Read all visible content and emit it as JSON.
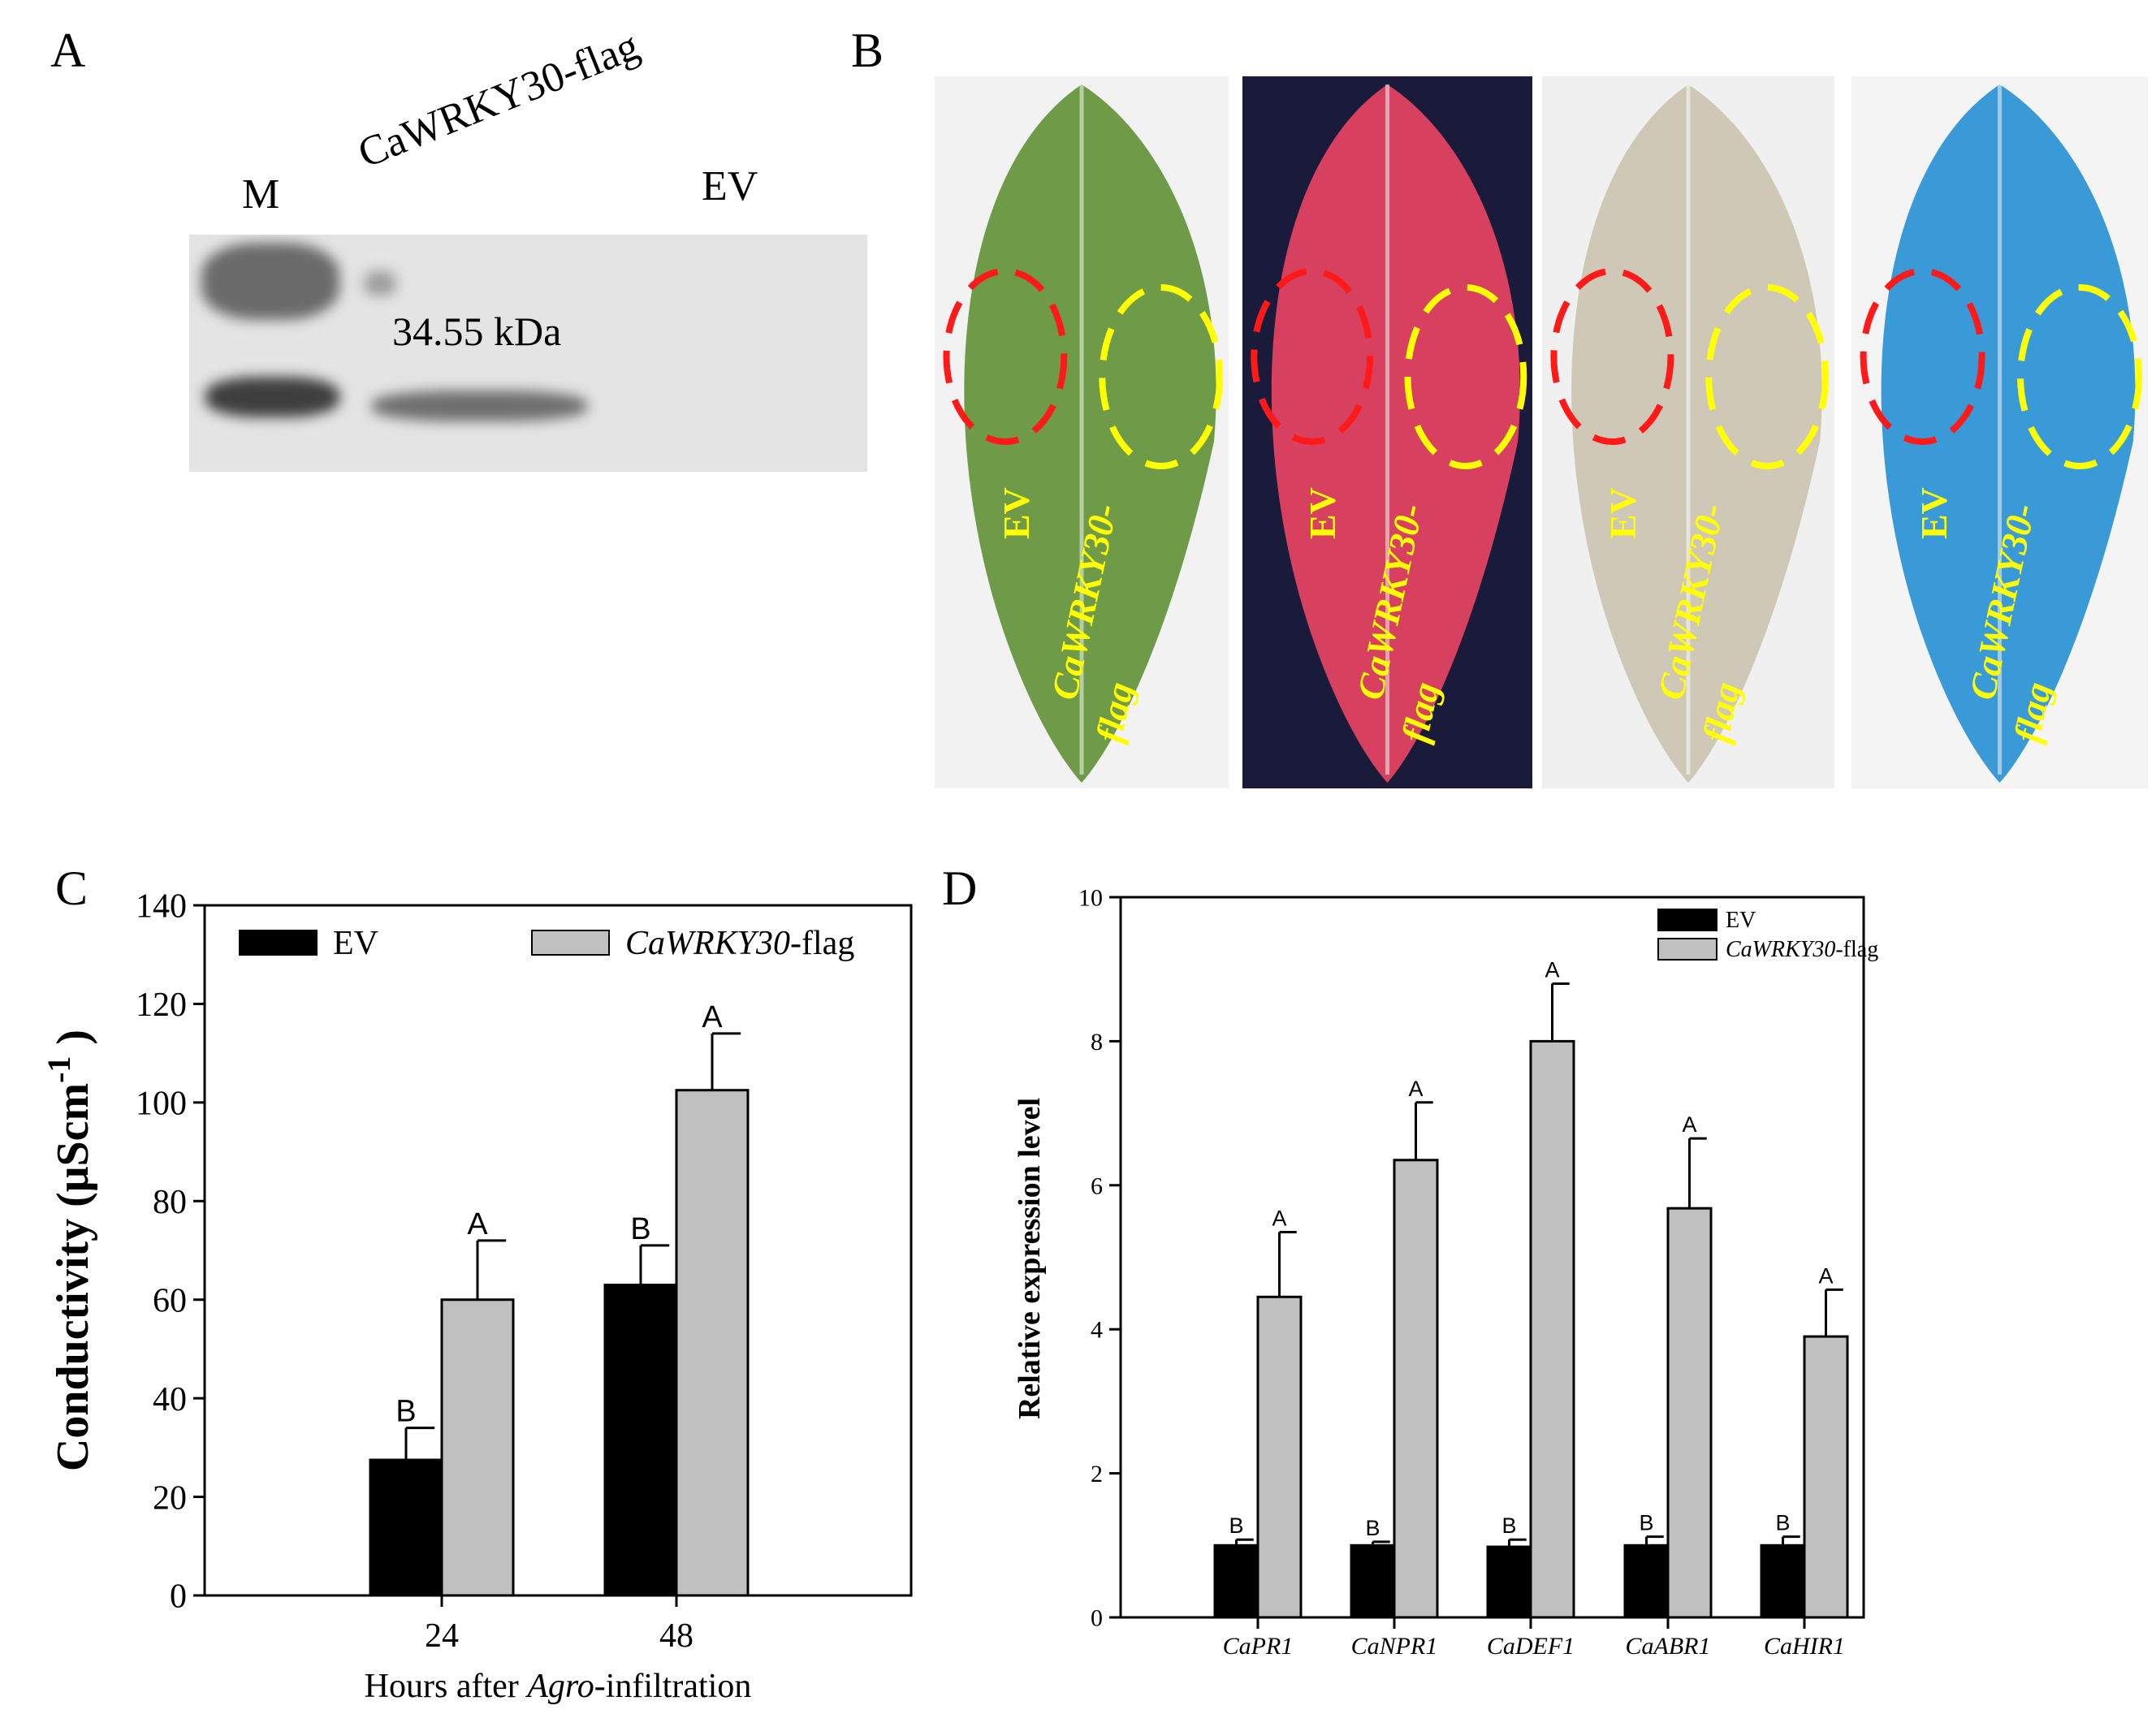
{
  "panel_a": {
    "label": "A",
    "lanes": [
      "M",
      "CaWRKY30-flag",
      "EV"
    ],
    "band_label": "34.55 kDa"
  },
  "panel_b": {
    "label": "B",
    "leaves": [
      {
        "ev_label": "EV",
        "flag_label_1": "CaWRKY30-",
        "flag_label_2": "flag",
        "background": "#f2f2f2",
        "leaf_color": "#6f9a48"
      },
      {
        "ev_label": "EV",
        "flag_label_1": "CaWRKY30-",
        "flag_label_2": "flag",
        "background": "#1a1a3a",
        "leaf_color": "#d8405f"
      },
      {
        "ev_label": "EV",
        "flag_label_1": "CaWRKY30-",
        "flag_label_2": "flag",
        "background": "#f0f0f0",
        "leaf_color": "#cfc8b6"
      },
      {
        "ev_label": "EV",
        "flag_label_1": "CaWRKY30-",
        "flag_label_2": "flag",
        "background": "#f4f4f4",
        "leaf_color": "#3a9ad8"
      }
    ],
    "ev_circle_color": "#ff1a1a",
    "flag_circle_color": "#ffff00"
  },
  "chart_data": [
    {
      "panel_label": "C",
      "type": "bar",
      "categories": [
        "24",
        "48"
      ],
      "series": [
        {
          "name": "EV",
          "values": [
            27.5,
            63
          ],
          "errors": [
            6.5,
            8
          ],
          "letters": [
            "B",
            "B"
          ],
          "color": "#000000"
        },
        {
          "name_italic": "CaWRKY30",
          "name_suffix": "-flag",
          "values": [
            60,
            102.5
          ],
          "errors": [
            12,
            11.5
          ],
          "letters": [
            "A",
            "A"
          ],
          "color": "#c0c0c0"
        }
      ],
      "xlabel_pre": "Hours after ",
      "xlabel_italic": "Agro",
      "xlabel_post": "-infiltration",
      "ylabel": "Conductivity (μScm",
      "ylabel_sup": "-1",
      "ylabel_close": " )",
      "ylim": [
        0,
        140
      ],
      "yticks": [
        "0",
        "20",
        "40",
        "60",
        "80",
        "100",
        "120",
        "140"
      ],
      "legend": "top"
    },
    {
      "panel_label": "D",
      "type": "bar",
      "categories": [
        "CaPR1",
        "CaNPR1",
        "CaDEF1",
        "CaABR1",
        "CaHIR1"
      ],
      "series": [
        {
          "name": "EV",
          "values": [
            1.0,
            1.0,
            0.98,
            1.0,
            1.0
          ],
          "errors": [
            0.08,
            0.05,
            0.1,
            0.12,
            0.12
          ],
          "letters": [
            "B",
            "B",
            "B",
            "B",
            "B"
          ],
          "color": "#000000"
        },
        {
          "name_italic": "CaWRKY30",
          "name_suffix": "-flag",
          "values": [
            4.45,
            6.35,
            8.0,
            5.68,
            3.9
          ],
          "errors": [
            0.9,
            0.8,
            0.8,
            0.97,
            0.65
          ],
          "letters": [
            "A",
            "A",
            "A",
            "A",
            "A"
          ],
          "color": "#c0c0c0"
        }
      ],
      "xlabel": "",
      "ylabel": "Relative expression level",
      "ylim": [
        0,
        10
      ],
      "yticks": [
        "0",
        "2",
        "4",
        "6",
        "8",
        "10"
      ],
      "legend": "top-right"
    }
  ]
}
